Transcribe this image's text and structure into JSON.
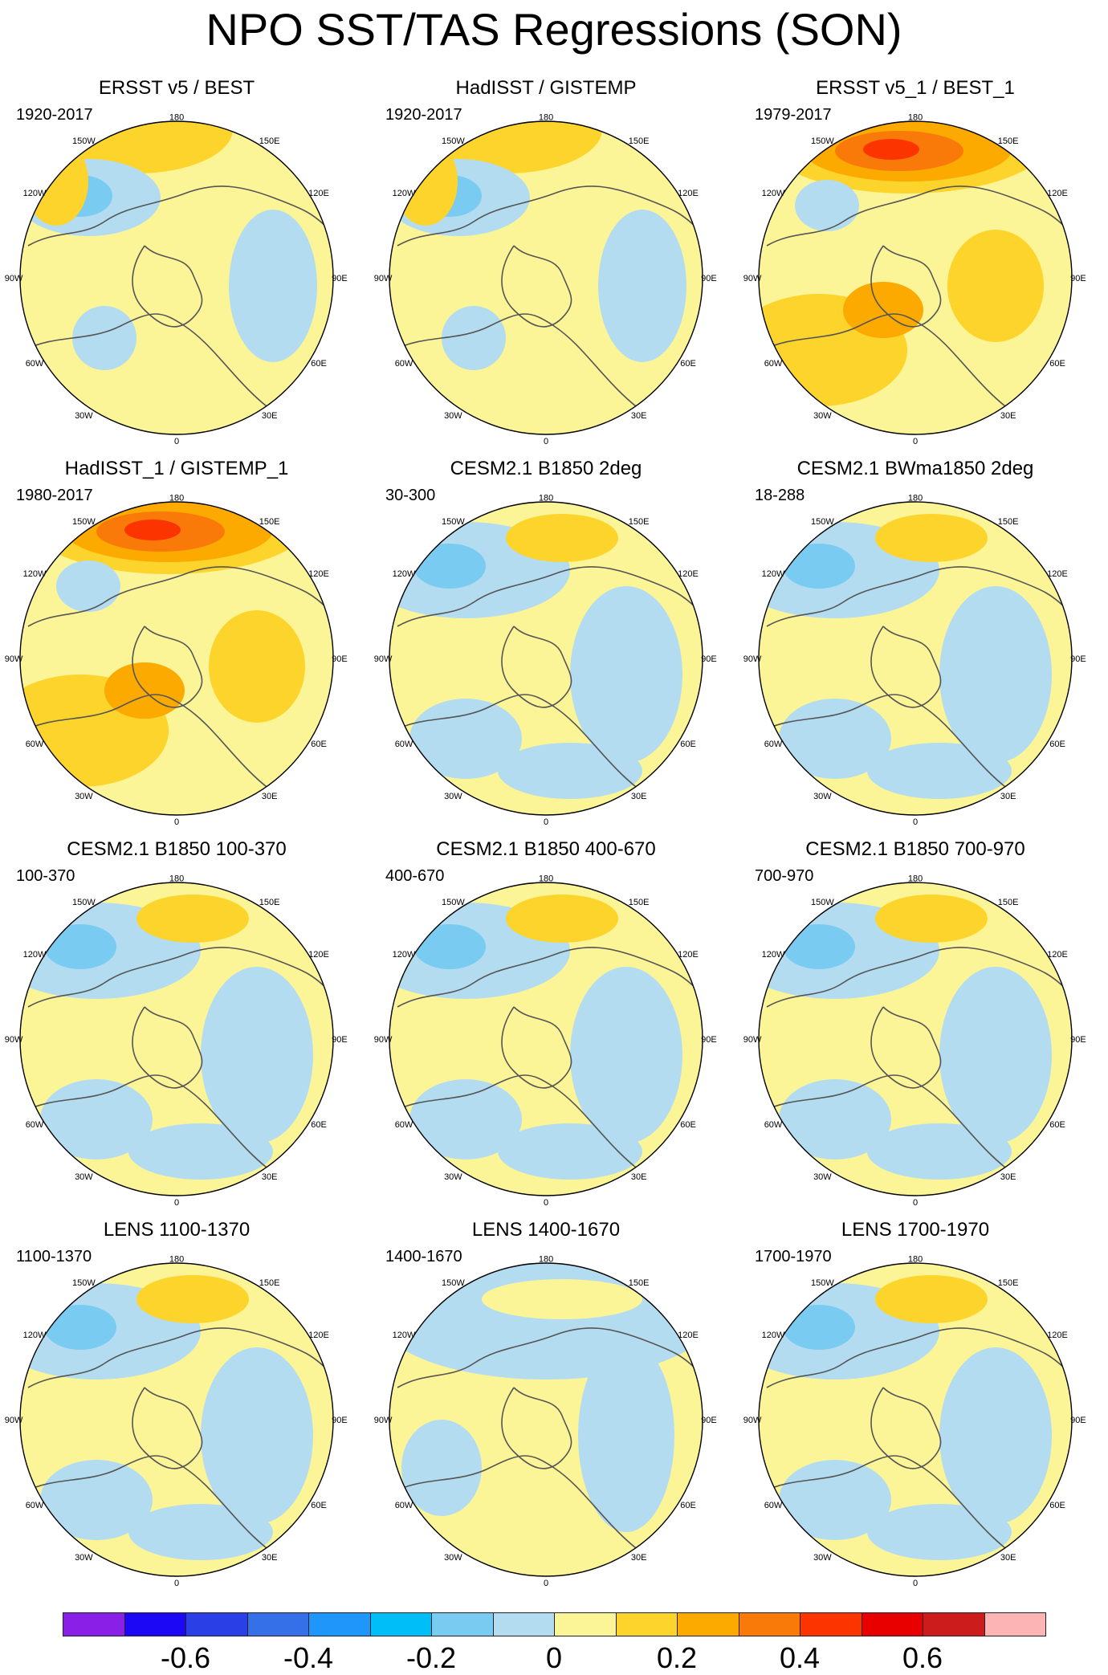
{
  "title": "NPO SST/TAS Regressions (SON)",
  "lon_labels": [
    "180",
    "150E",
    "120E",
    "90E",
    "60E",
    "30E",
    "0",
    "30W",
    "60W",
    "90W",
    "120W",
    "150W"
  ],
  "panels": [
    {
      "title": "ERSST v5 / BEST",
      "years": "1920-2017",
      "style": "obs"
    },
    {
      "title": "HadISST / GISTEMP",
      "years": "1920-2017",
      "style": "obs"
    },
    {
      "title": "ERSST v5_1 / BEST_1",
      "years": "1979-2017",
      "style": "obs-strong"
    },
    {
      "title": "HadISST_1 / GISTEMP_1",
      "years": "1980-2017",
      "style": "obs-strong"
    },
    {
      "title": "CESM2.1 B1850 2deg",
      "years": "30-300",
      "style": "model"
    },
    {
      "title": "CESM2.1 BWma1850 2deg",
      "years": "18-288",
      "style": "model"
    },
    {
      "title": "CESM2.1 B1850 100-370",
      "years": "100-370",
      "style": "model"
    },
    {
      "title": "CESM2.1 B1850 400-670",
      "years": "400-670",
      "style": "model"
    },
    {
      "title": "CESM2.1 B1850 700-970",
      "years": "700-970",
      "style": "model"
    },
    {
      "title": "LENS 1100-1370",
      "years": "1100-1370",
      "style": "model"
    },
    {
      "title": "LENS 1400-1670",
      "years": "1400-1670",
      "style": "model-weak"
    },
    {
      "title": "LENS 1700-1970",
      "years": "1700-1970",
      "style": "model"
    }
  ],
  "colorbar": {
    "colors": [
      "#8a20e8",
      "#1c08f4",
      "#2a40e6",
      "#3570e8",
      "#1f96fa",
      "#00bff8",
      "#79cbf2",
      "#b4dcf0",
      "#fcf597",
      "#fdd42b",
      "#fca900",
      "#fa7a09",
      "#fc3400",
      "#e80000",
      "#cc1c1c",
      "#fcb4b4"
    ],
    "tick_values": [
      -0.6,
      -0.4,
      -0.2,
      0,
      0.2,
      0.4,
      0.6
    ],
    "tick_labels": [
      "-0.6",
      "-0.4",
      "-0.2",
      "0",
      "0.2",
      "0.4",
      "0.6"
    ]
  }
}
